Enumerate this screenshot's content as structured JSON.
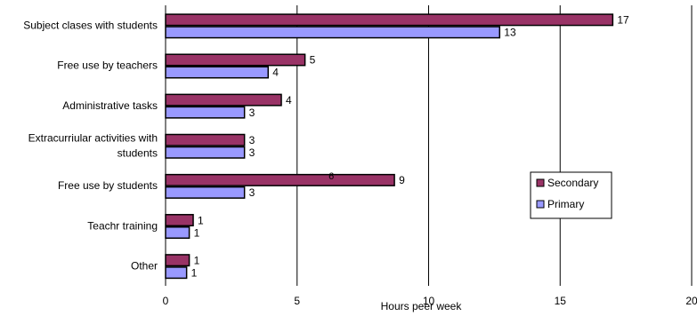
{
  "chart_data": {
    "type": "bar",
    "orientation": "horizontal",
    "title": "",
    "xlabel": "Hours peer week",
    "ylabel": "",
    "xlim": [
      0,
      20
    ],
    "xticks": [
      0,
      5,
      10,
      15,
      20
    ],
    "grid": true,
    "legend_position": "right",
    "categories": [
      [
        "Subject clases with students"
      ],
      [
        "Free use by teachers"
      ],
      [
        "Administrative tasks"
      ],
      [
        "Extracurriular activities with",
        "students"
      ],
      [
        "Free use by students"
      ],
      [
        "Teachr training"
      ],
      [
        "Other"
      ]
    ],
    "series": [
      {
        "name": "Secondary",
        "color": "#993366",
        "values": [
          17,
          5.3,
          4.4,
          3,
          8.7,
          1.05,
          0.9
        ],
        "labels": [
          "17",
          "5",
          "4",
          "3",
          "9",
          "1",
          "1"
        ]
      },
      {
        "name": "Primary",
        "color": "#9999ff",
        "values": [
          12.7,
          3.9,
          3,
          3,
          3,
          0.9,
          0.8
        ],
        "labels": [
          "13",
          "4",
          "3",
          "3",
          "3",
          "1",
          "1"
        ]
      }
    ],
    "annotations": [
      {
        "text": "6",
        "x": 6.3,
        "category_index": 4
      }
    ]
  }
}
